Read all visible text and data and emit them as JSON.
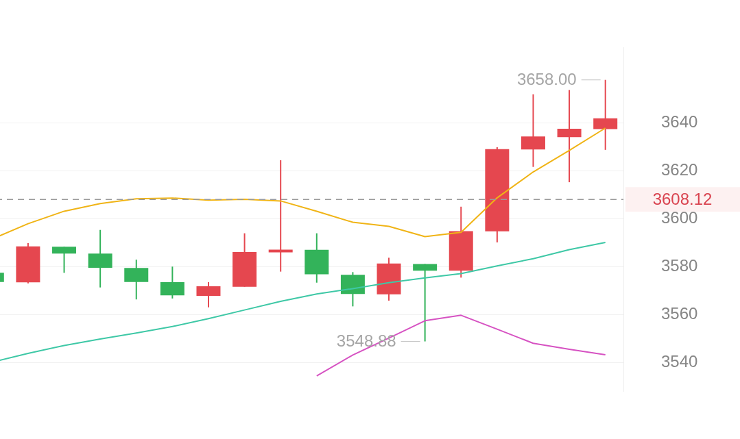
{
  "chart_data": {
    "type": "candlestick",
    "categories": [
      null,
      null,
      null,
      null,
      null,
      null,
      null,
      null,
      null,
      null,
      null,
      null,
      null,
      null,
      null,
      null,
      null,
      null
    ],
    "ohlc": [
      [
        3577.5,
        3577.5,
        3573.7,
        3573.7
      ],
      [
        3573.5,
        3589.9,
        3573.1,
        3588.5
      ],
      [
        3588.4,
        3588.4,
        3577.5,
        3585.5
      ],
      [
        3585.5,
        3595.4,
        3571.4,
        3579.6
      ],
      [
        3579.5,
        3583.0,
        3566.4,
        3573.7
      ],
      [
        3573.6,
        3580.1,
        3566.8,
        3568.1
      ],
      [
        3567.9,
        3573.6,
        3563.1,
        3571.9
      ],
      [
        3571.7,
        3594.0,
        3571.7,
        3586.2
      ],
      [
        3586.0,
        3624.5,
        3578.0,
        3587.2
      ],
      [
        3587.1,
        3594.0,
        3573.4,
        3576.9
      ],
      [
        3576.7,
        3577.8,
        3563.5,
        3568.7
      ],
      [
        3568.5,
        3583.8,
        3565.9,
        3581.4
      ],
      [
        3581.2,
        3581.2,
        3548.88,
        3578.4
      ],
      [
        3578.4,
        3605.1,
        3575.5,
        3594.9
      ],
      [
        3594.8,
        3629.9,
        3590.2,
        3629.1
      ],
      [
        3629.0,
        3652.0,
        3621.7,
        3634.4
      ],
      [
        3634.1,
        3653.8,
        3615.3,
        3637.6
      ],
      [
        3637.5,
        3658.0,
        3628.8,
        3642.0
      ]
    ],
    "colors": [
      "#33b35a",
      "#e5474f",
      "#33b35a",
      "#33b35a",
      "#33b35a",
      "#33b35a",
      "#e5474f",
      "#e5474f",
      "#e5474f",
      "#33b35a",
      "#33b35a",
      "#e5474f",
      "#33b35a",
      "#e5474f",
      "#e5474f",
      "#e5474f",
      "#e5474f",
      "#e5474f"
    ],
    "series": [
      {
        "type": "line",
        "color": "#f0b416",
        "values": [
          3591.6,
          3598.0,
          3603.2,
          3606.4,
          3608.4,
          3608.7,
          3607.8,
          3608.2,
          3607.5,
          3603.2,
          3598.6,
          3596.9,
          3592.6,
          3594.4,
          3608.8,
          3619.6,
          3628.6,
          3637.9
        ]
      },
      {
        "type": "line",
        "color": "#3ec8a6",
        "values": [
          3540.2,
          3543.9,
          3547.2,
          3549.9,
          3552.4,
          3555.1,
          3558.4,
          3562.0,
          3565.6,
          3568.7,
          3570.9,
          3573.4,
          3575.4,
          3577.2,
          3580.4,
          3583.4,
          3587.2,
          3590.2
        ]
      },
      {
        "type": "line",
        "color": "#d652c2",
        "values": [
          null,
          null,
          null,
          null,
          null,
          null,
          null,
          null,
          null,
          3534.5,
          3543.2,
          3550.3,
          3557.5,
          3559.8,
          3554.0,
          3548.1,
          3545.6,
          3543.3
        ]
      }
    ],
    "ylim": [
      3528,
      3671.5
    ],
    "yticks": [
      3540,
      3560,
      3580,
      3600,
      3620,
      3640
    ],
    "grid": "y",
    "tick_labels": "y",
    "ref_lines": [
      {
        "axis": "y",
        "value": 3608.12,
        "label": "3608.12",
        "color": "#9a9a9a",
        "line_style": "dashed"
      }
    ],
    "annotations": [
      "3658.00",
      "3548.88"
    ]
  }
}
